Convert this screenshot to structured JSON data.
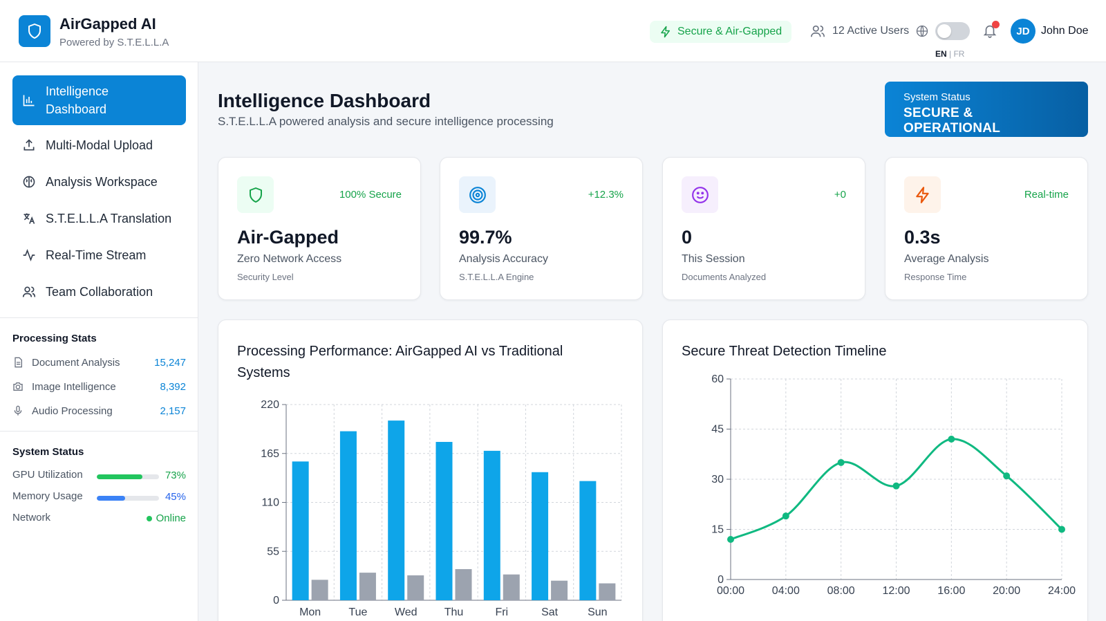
{
  "app": {
    "title": "AirGapped AI",
    "subtitle": "Powered by S.T.E.L.L.A",
    "brand_color": "#0b84d6"
  },
  "header": {
    "secure_label": "Secure & Air-Gapped",
    "active_users": "12 Active Users",
    "lang_active": "EN",
    "lang_sep": " | ",
    "lang_other": "FR",
    "avatar_initials": "JD",
    "user_name": "John Doe"
  },
  "sidebar": {
    "items": [
      {
        "label": "Intelligence Dashboard",
        "icon": "bar-chart-icon",
        "active": true
      },
      {
        "label": "Multi-Modal Upload",
        "icon": "upload-icon"
      },
      {
        "label": "Analysis Workspace",
        "icon": "brain-icon"
      },
      {
        "label": "S.T.E.L.L.A Translation",
        "icon": "translate-icon"
      },
      {
        "label": "Real-Time Stream",
        "icon": "activity-icon"
      },
      {
        "label": "Team Collaboration",
        "icon": "users-icon"
      }
    ],
    "processing_title": "Processing Stats",
    "processing": [
      {
        "label": "Document Analysis",
        "value": "15,247",
        "icon": "document-icon"
      },
      {
        "label": "Image Intelligence",
        "value": "8,392",
        "icon": "camera-icon"
      },
      {
        "label": "Audio Processing",
        "value": "2,157",
        "icon": "microphone-icon"
      }
    ],
    "system_title": "System Status",
    "gpu_label": "GPU Utilization",
    "gpu_value": "73%",
    "gpu_fraction": 0.73,
    "memory_label": "Memory Usage",
    "memory_value": "45%",
    "memory_fraction": 0.45,
    "network_label": "Network",
    "network_value": "Online"
  },
  "main": {
    "title": "Intelligence Dashboard",
    "subtitle": "S.T.E.L.L.A powered analysis and secure intelligence processing",
    "status_label": "System Status",
    "status_value": "SECURE & OPERATIONAL"
  },
  "cards": [
    {
      "change": "100% Secure",
      "value": "Air-Gapped",
      "label": "Zero Network Access",
      "sub": "Security Level",
      "icon": "shield-icon",
      "color": "#16a34a",
      "bg": "#ecfdf3"
    },
    {
      "change": "+12.3%",
      "value": "99.7%",
      "label": "Analysis Accuracy",
      "sub": "S.T.E.L.L.A Engine",
      "icon": "target-icon",
      "color": "#0b84d6",
      "bg": "#eaf3fc"
    },
    {
      "change": "+0",
      "value": "0",
      "label": "This Session",
      "sub": "Documents Analyzed",
      "icon": "smiley-icon",
      "color": "#9333ea",
      "bg": "#f6effd"
    },
    {
      "change": "Real-time",
      "value": "0.3s",
      "label": "Average Analysis",
      "sub": "Response Time",
      "icon": "lightning-icon",
      "color": "#ea580c",
      "bg": "#fef3ea"
    }
  ],
  "chart_data": [
    {
      "type": "bar",
      "title": "Processing Performance: AirGapped AI vs Traditional Systems",
      "categories": [
        "Mon",
        "Tue",
        "Wed",
        "Thu",
        "Fri",
        "Sat",
        "Sun"
      ],
      "series": [
        {
          "values": [
            156,
            190,
            202,
            178,
            168,
            144,
            134
          ],
          "color": "#0ea5e9"
        },
        {
          "values": [
            23,
            31,
            28,
            35,
            29,
            22,
            19
          ],
          "color": "#9ca3af"
        }
      ],
      "ylim": [
        0,
        220
      ],
      "yticks": [
        "220",
        "165",
        "110",
        "55",
        "0"
      ],
      "grid": true
    },
    {
      "type": "line",
      "title": "Secure Threat Detection Timeline",
      "x": [
        "00:00",
        "04:00",
        "08:00",
        "12:00",
        "16:00",
        "20:00",
        "24:00"
      ],
      "series": [
        {
          "values": [
            12,
            19,
            35,
            28,
            42,
            31,
            15
          ],
          "color": "#10b981"
        }
      ],
      "ylim": [
        0,
        60
      ],
      "yticks": [
        "60",
        "45",
        "30",
        "15",
        "0"
      ],
      "grid": true
    }
  ]
}
